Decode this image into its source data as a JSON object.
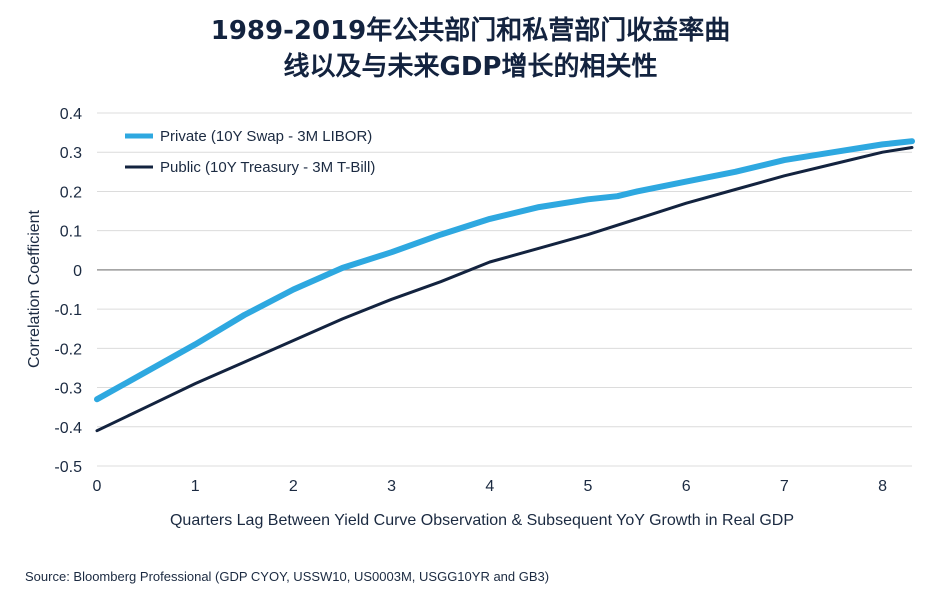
{
  "chart_data": {
    "type": "line",
    "title": "1989-2019年公共部门和私营部门收益率曲线以及与未来GDP增长的相关性",
    "title_lines": [
      "1989-2019年公共部门和私营部门收益率曲",
      "线以及与未来GDP增长的相关性"
    ],
    "xlabel": "Quarters Lag Between Yield Curve Observation & Subsequent YoY Growth in Real GDP",
    "ylabel": "Correlation Coefficient",
    "xlim": [
      0,
      8.3
    ],
    "ylim": [
      -0.5,
      0.4
    ],
    "x_ticks": [
      0,
      1,
      2,
      3,
      4,
      5,
      6,
      7,
      8
    ],
    "x_tick_labels": [
      "0",
      "1",
      "2",
      "3",
      "4",
      "5",
      "6",
      "7",
      "8"
    ],
    "y_ticks": [
      0.4,
      0.3,
      0.2,
      0.1,
      0,
      -0.1,
      -0.2,
      -0.3,
      -0.4,
      -0.5
    ],
    "y_tick_labels": [
      "0.4",
      "0.3",
      "0.2",
      "0.1",
      "0",
      "-0.1",
      "-0.2",
      "-0.3",
      "-0.4",
      "-0.5"
    ],
    "grid": "horizontal",
    "legend_position": "top-left",
    "series": [
      {
        "name": "Private (10Y Swap - 3M LIBOR)",
        "color": "#2ea8e0",
        "x": [
          0,
          0.5,
          1,
          1.5,
          2,
          2.5,
          3,
          3.5,
          4,
          4.5,
          5,
          5.3,
          5.5,
          6,
          6.5,
          7,
          7.5,
          8,
          8.3
        ],
        "y": [
          -0.33,
          -0.26,
          -0.19,
          -0.115,
          -0.05,
          0.005,
          0.045,
          0.09,
          0.13,
          0.16,
          0.18,
          0.188,
          0.2,
          0.225,
          0.25,
          0.28,
          0.3,
          0.32,
          0.328
        ]
      },
      {
        "name": "Public (10Y Treasury - 3M T-Bill)",
        "color": "#13233f",
        "x": [
          0,
          0.5,
          1,
          1.5,
          2,
          2.5,
          3,
          3.5,
          4,
          4.5,
          5,
          5.5,
          6,
          6.5,
          7,
          7.5,
          8,
          8.3
        ],
        "y": [
          -0.41,
          -0.35,
          -0.29,
          -0.235,
          -0.18,
          -0.125,
          -0.075,
          -0.03,
          0.02,
          0.055,
          0.09,
          0.13,
          0.17,
          0.205,
          0.24,
          0.27,
          0.3,
          0.312
        ]
      }
    ]
  },
  "source": "Source: Bloomberg Professional (GDP CYOY, USSW10, US0003M, USGG10YR and GB3)"
}
